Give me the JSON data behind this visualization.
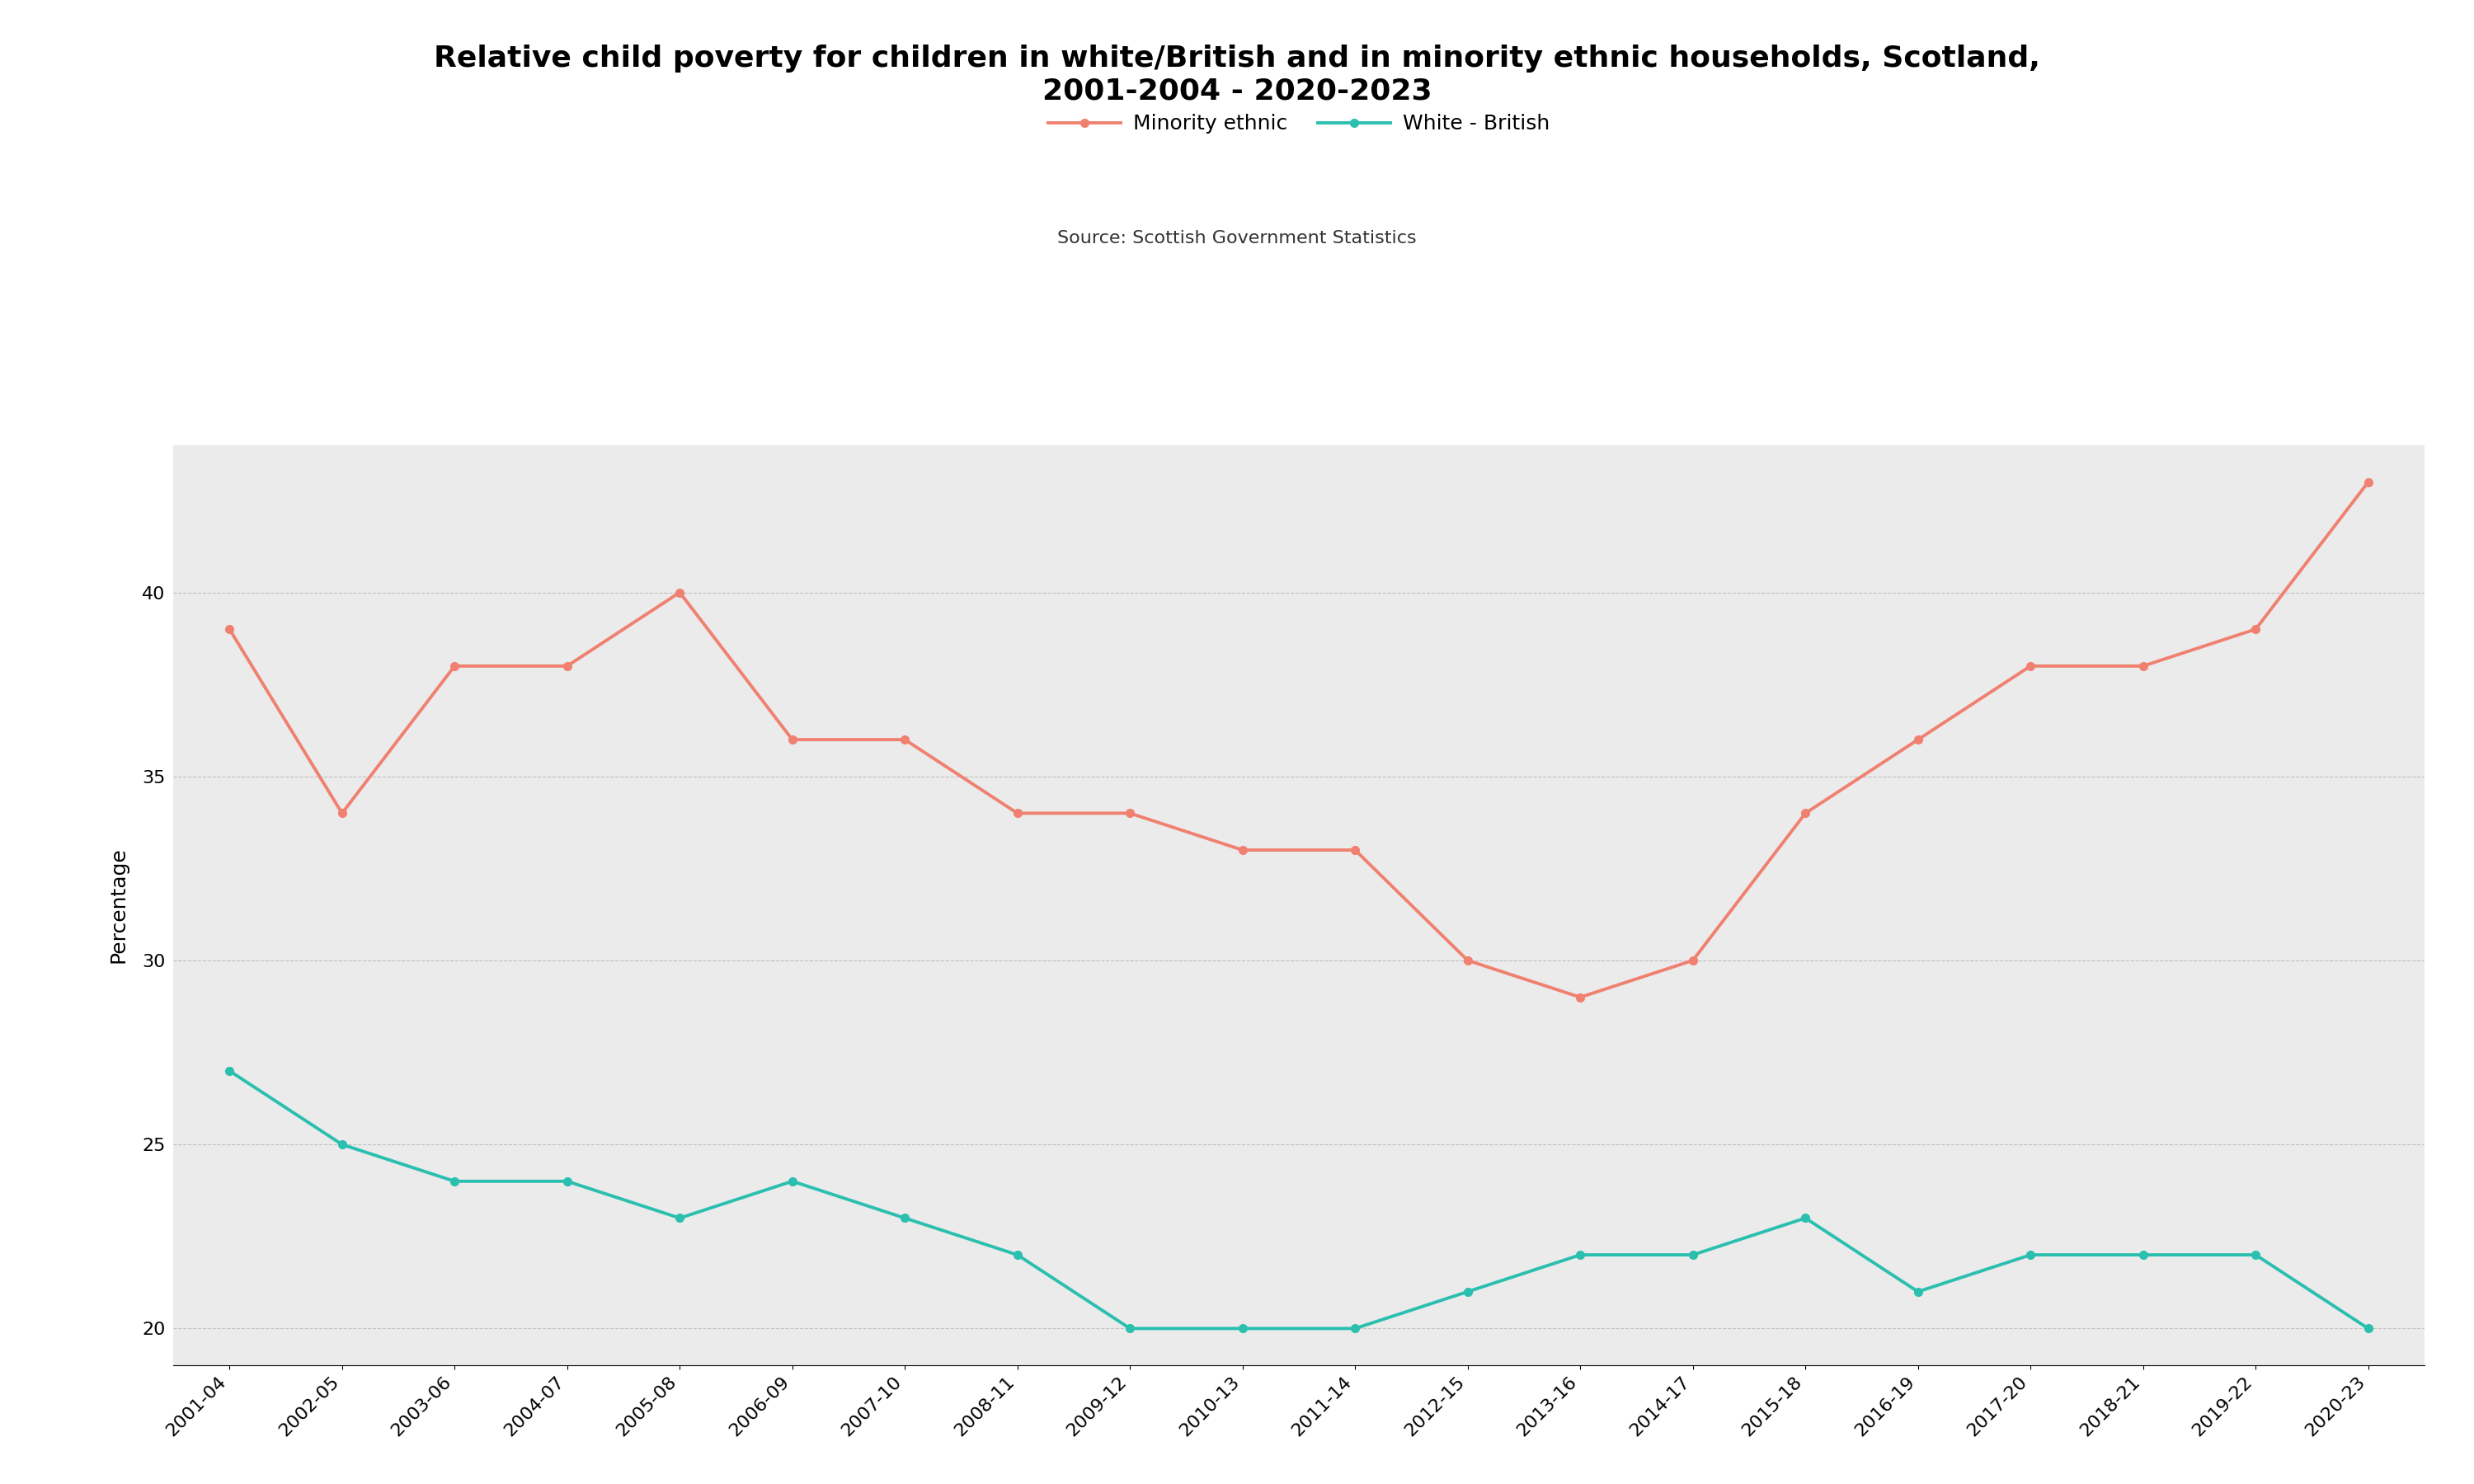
{
  "title": "Relative child poverty for children in white/British and in minority ethnic households, Scotland,\n2001-2004 - 2020-2023",
  "source": "Source: Scottish Government Statistics",
  "ylabel": "Percentage",
  "ylim": [
    19,
    44
  ],
  "yticks": [
    20,
    25,
    30,
    35,
    40
  ],
  "background_color": "#ebebeb",
  "figure_bg": "#ffffff",
  "categories": [
    "2001-04",
    "2002-05",
    "2003-06",
    "2004-07",
    "2005-08",
    "2006-09",
    "2007-10",
    "2008-11",
    "2009-12",
    "2010-13",
    "2011-14",
    "2012-15",
    "2013-16",
    "2014-17",
    "2015-18",
    "2016-19",
    "2017-20",
    "2018-21",
    "2019-22",
    "2020-23"
  ],
  "minority_ethnic": [
    39,
    34,
    38,
    38,
    40,
    36,
    36,
    34,
    34,
    33,
    33,
    30,
    29,
    30,
    34,
    36,
    38,
    38,
    39,
    43
  ],
  "white_british": [
    27,
    25,
    24,
    24,
    23,
    24,
    23,
    22,
    20,
    20,
    20,
    21,
    22,
    22,
    23,
    21,
    22,
    22,
    22,
    20
  ],
  "minority_color": "#F08070",
  "white_color": "#2BBFB0",
  "minority_label": "Minority ethnic",
  "white_label": "White - British",
  "title_fontsize": 26,
  "source_fontsize": 16,
  "label_fontsize": 18,
  "tick_fontsize": 16,
  "legend_fontsize": 18,
  "linewidth": 2.8,
  "marker": "o",
  "markersize": 7,
  "grid_color": "#bbbbbb",
  "grid_style": "--",
  "grid_alpha": 0.9
}
